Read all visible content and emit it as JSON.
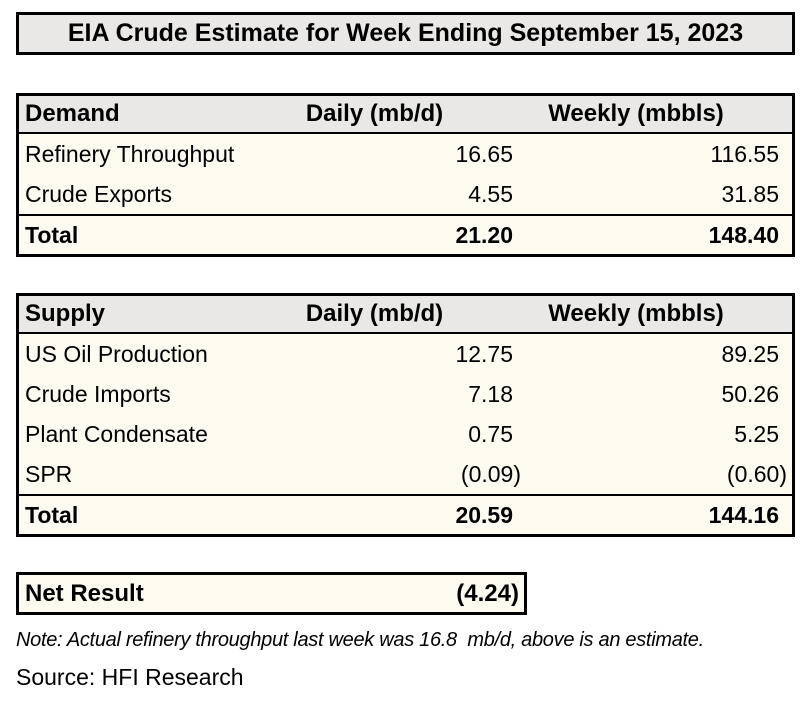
{
  "title": "EIA Crude Estimate for Week Ending September 15, 2023",
  "tables": {
    "demand": {
      "header": {
        "label": "Demand",
        "daily": "Daily (mb/d)",
        "weekly": "Weekly (mbbls)"
      },
      "rows": [
        {
          "label": "Refinery Throughput",
          "daily": "16.65",
          "weekly": "116.55"
        },
        {
          "label": "Crude Exports",
          "daily": "4.55",
          "weekly": "31.85"
        }
      ],
      "total": {
        "label": "Total",
        "daily": "21.20",
        "weekly": "148.40"
      }
    },
    "supply": {
      "header": {
        "label": "Supply",
        "daily": "Daily (mb/d)",
        "weekly": "Weekly (mbbls)"
      },
      "rows": [
        {
          "label": "US Oil Production",
          "daily": "12.75",
          "weekly": "89.25"
        },
        {
          "label": "Crude Imports",
          "daily": "7.18",
          "weekly": "50.26"
        },
        {
          "label": "Plant Condensate",
          "daily": "0.75",
          "weekly": "5.25"
        },
        {
          "label": "SPR",
          "daily": "(0.09)",
          "weekly": "(0.60)"
        }
      ],
      "total": {
        "label": "Total",
        "daily": "20.59",
        "weekly": "144.16"
      }
    }
  },
  "net_result": {
    "label": "Net Result",
    "value": "(4.24)"
  },
  "note": "Note: Actual refinery throughput last week was 16.8  mb/d, above is an estimate.",
  "source": "Source: HFI Research",
  "colors": {
    "page_bg": "#FFFFFF",
    "header_bg": "#E9E8E6",
    "body_bg": "#FDFBF0",
    "border": "#000000",
    "text": "#000000"
  },
  "chart_data": [
    {
      "type": "table",
      "title": "Demand",
      "columns": [
        "Demand",
        "Daily (mb/d)",
        "Weekly (mbbls)"
      ],
      "rows": [
        [
          "Refinery Throughput",
          16.65,
          116.55
        ],
        [
          "Crude Exports",
          4.55,
          31.85
        ]
      ],
      "total": [
        "Total",
        21.2,
        148.4
      ]
    },
    {
      "type": "table",
      "title": "Supply",
      "columns": [
        "Supply",
        "Daily (mb/d)",
        "Weekly (mbbls)"
      ],
      "rows": [
        [
          "US Oil Production",
          12.75,
          89.25
        ],
        [
          "Crude Imports",
          7.18,
          50.26
        ],
        [
          "Plant Condensate",
          0.75,
          5.25
        ],
        [
          "SPR",
          -0.09,
          -0.6
        ]
      ],
      "total": [
        "Total",
        20.59,
        144.16
      ]
    },
    {
      "type": "table",
      "title": "Net Result",
      "columns": [
        "Net Result"
      ],
      "rows": [
        [
          "Net Result",
          -4.24
        ]
      ]
    }
  ]
}
